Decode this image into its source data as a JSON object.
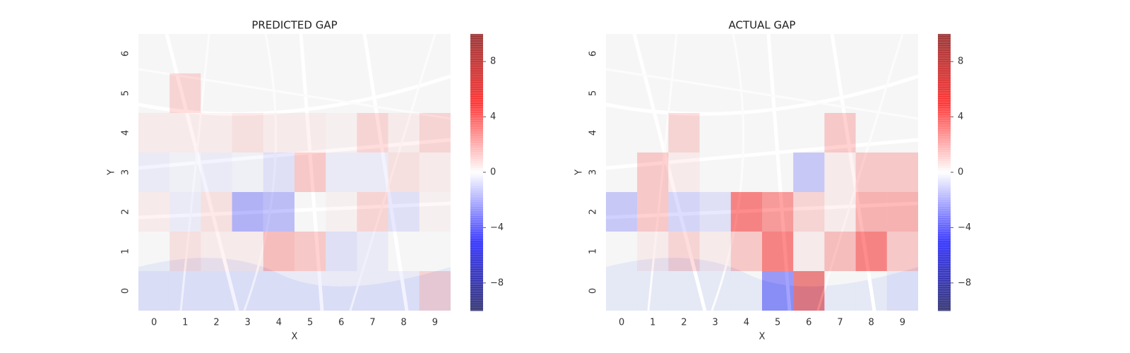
{
  "chart_data": [
    {
      "type": "heatmap",
      "title": "PREDICTED GAP",
      "xlabel": "X",
      "ylabel": "Y",
      "xticks": [
        0,
        1,
        2,
        3,
        4,
        5,
        6,
        7,
        8,
        9
      ],
      "yticks": [
        0,
        1,
        2,
        3,
        4,
        5,
        6
      ],
      "values": [
        [
          -0.5,
          -0.5,
          -0.5,
          -0.5,
          -0.5,
          -0.5,
          -0.5,
          -0.5,
          -0.5,
          1.5
        ],
        [
          0,
          1,
          0.5,
          0.5,
          2.5,
          2,
          -1,
          -0.5,
          0,
          0
        ],
        [
          0.5,
          -0.5,
          1,
          -3,
          -2.5,
          0,
          0.3,
          1.5,
          -1,
          0.3
        ],
        [
          -0.5,
          -0.3,
          -0.5,
          -0.3,
          -1,
          2,
          -0.5,
          -0.5,
          1,
          0.5
        ],
        [
          0.5,
          0.5,
          0.5,
          1,
          0.5,
          0.5,
          0.3,
          1.5,
          0.5,
          1.5
        ],
        [
          0,
          1.5,
          0,
          0,
          0,
          0,
          0,
          0,
          0,
          0
        ],
        [
          0,
          0,
          0,
          0,
          0,
          0,
          0,
          0,
          0,
          0
        ]
      ],
      "colormap": "seismic",
      "clim": [
        -10,
        10
      ],
      "cticks": [
        {
          "value": -8,
          "label": "−8"
        },
        {
          "value": -4,
          "label": "−4"
        },
        0,
        4,
        8
      ]
    },
    {
      "type": "heatmap",
      "title": "ACTUAL GAP",
      "xlabel": "X",
      "ylabel": "Y",
      "xticks": [
        0,
        1,
        2,
        3,
        4,
        5,
        6,
        7,
        8,
        9
      ],
      "yticks": [
        0,
        1,
        2,
        3,
        4,
        5,
        6
      ],
      "values": [
        [
          0,
          0,
          0,
          0,
          0,
          -4,
          6,
          0,
          0,
          -0.5
        ],
        [
          0,
          0.5,
          1.5,
          0.5,
          2,
          5,
          0.5,
          2.5,
          5,
          2
        ],
        [
          -2,
          2,
          -1.5,
          -1,
          5,
          4,
          1.5,
          0.5,
          3,
          3
        ],
        [
          0,
          2,
          0.5,
          0,
          0,
          0,
          -2,
          0.5,
          2,
          2
        ],
        [
          0,
          0,
          1.5,
          0,
          0,
          0,
          0,
          2,
          0,
          0
        ],
        [
          0,
          0,
          0,
          0,
          0,
          0,
          0,
          0,
          0,
          0
        ],
        [
          0,
          0,
          0,
          0,
          0,
          0,
          0,
          0,
          0,
          0
        ]
      ],
      "colormap": "seismic",
      "clim": [
        -10,
        10
      ],
      "cticks": [
        {
          "value": -8,
          "label": "−8"
        },
        {
          "value": -4,
          "label": "−4"
        },
        0,
        4,
        8
      ]
    }
  ]
}
